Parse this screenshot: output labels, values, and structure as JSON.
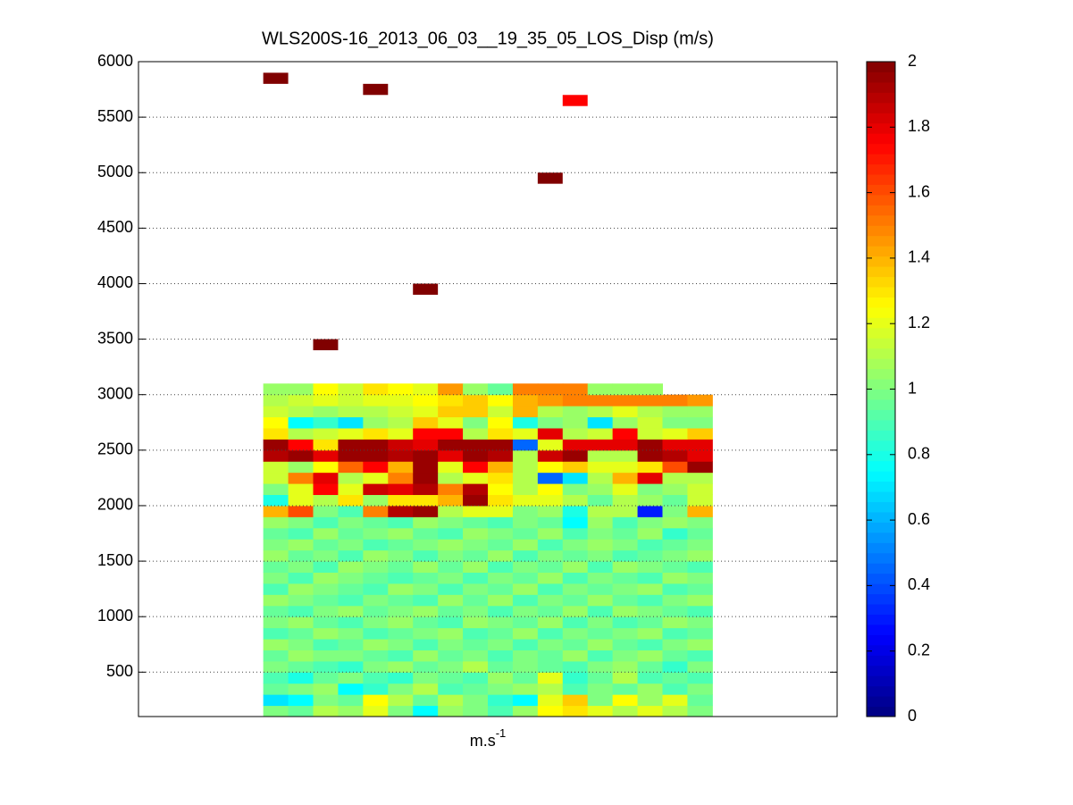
{
  "chart_data": {
    "type": "heatmap",
    "title": "WLS200S-16_2013_06_03__19_35_05_LOS_Disp (m/s)",
    "xlabel": {
      "text": "m.s",
      "superscript": "-1"
    },
    "xlim": [
      0,
      28
    ],
    "ylim": [
      100,
      6000
    ],
    "yticks": [
      500,
      1000,
      1500,
      2000,
      2500,
      3000,
      3500,
      4000,
      4500,
      5000,
      5500,
      6000
    ],
    "grid": true,
    "colormap": "jet",
    "clim": [
      0,
      2
    ],
    "cticks": [
      0,
      0.2,
      0.4,
      0.6,
      0.8,
      1,
      1.2,
      1.4,
      1.6,
      1.8,
      2
    ],
    "x_edges": [
      5,
      6,
      7,
      8,
      9,
      10,
      11,
      12,
      13,
      14,
      15,
      16,
      17,
      18,
      19,
      20,
      21,
      22,
      23
    ],
    "y_edges": [
      100,
      200,
      300,
      400,
      500,
      600,
      700,
      800,
      900,
      1000,
      1100,
      1200,
      1300,
      1400,
      1500,
      1600,
      1700,
      1800,
      1900,
      2000,
      2100,
      2200,
      2300,
      2400,
      2500,
      2600,
      2700,
      2800,
      2900,
      3000,
      3100
    ],
    "values": [
      [
        1.0,
        0.95,
        1.1,
        1.05,
        1.2,
        1.0,
        0.75,
        1.05,
        1.0,
        0.9,
        1.05,
        1.25,
        1.3,
        1.2,
        1.1,
        1.2,
        1.1,
        1.0
      ],
      [
        0.7,
        0.75,
        1.0,
        0.95,
        1.25,
        1.1,
        0.95,
        1.1,
        1.0,
        0.85,
        0.75,
        1.2,
        1.35,
        1.0,
        1.25,
        1.05,
        1.2,
        0.95
      ],
      [
        0.95,
        1.0,
        1.05,
        0.75,
        0.85,
        1.0,
        1.1,
        0.9,
        0.95,
        1.0,
        1.05,
        1.1,
        0.9,
        1.0,
        0.95,
        1.05,
        0.9,
        1.0
      ],
      [
        0.9,
        0.8,
        0.95,
        1.0,
        0.9,
        0.85,
        1.0,
        0.95,
        0.9,
        1.05,
        0.95,
        1.2,
        0.85,
        0.95,
        1.1,
        0.9,
        0.95,
        0.9
      ],
      [
        1.0,
        0.95,
        0.9,
        0.85,
        1.0,
        1.05,
        0.95,
        1.0,
        1.1,
        0.95,
        1.0,
        0.95,
        0.9,
        1.0,
        1.05,
        0.95,
        0.85,
        1.0
      ],
      [
        0.95,
        1.05,
        1.0,
        1.0,
        0.95,
        0.9,
        1.05,
        0.95,
        1.0,
        0.9,
        1.0,
        0.95,
        1.05,
        0.9,
        1.0,
        1.05,
        0.95,
        0.9
      ],
      [
        1.05,
        1.0,
        0.9,
        0.95,
        1.05,
        1.0,
        0.9,
        1.0,
        0.95,
        1.0,
        0.9,
        1.0,
        0.95,
        1.05,
        0.95,
        0.9,
        1.0,
        1.05
      ],
      [
        0.9,
        0.95,
        1.05,
        1.0,
        0.9,
        0.95,
        1.0,
        1.05,
        0.9,
        0.95,
        1.05,
        0.9,
        1.0,
        0.95,
        1.0,
        1.05,
        0.9,
        0.95
      ],
      [
        1.0,
        1.05,
        0.95,
        0.9,
        1.0,
        1.05,
        0.95,
        0.9,
        1.05,
        1.0,
        0.95,
        1.05,
        0.9,
        1.0,
        0.9,
        0.95,
        1.05,
        1.0
      ],
      [
        0.95,
        0.9,
        1.0,
        1.05,
        0.95,
        1.0,
        1.05,
        0.95,
        1.0,
        0.9,
        1.0,
        0.95,
        1.05,
        0.9,
        1.05,
        1.0,
        0.95,
        0.9
      ],
      [
        1.05,
        1.0,
        0.95,
        0.9,
        1.0,
        0.95,
        0.9,
        1.05,
        0.95,
        1.05,
        0.9,
        1.0,
        0.95,
        1.05,
        0.95,
        0.9,
        1.0,
        1.05
      ],
      [
        0.9,
        1.05,
        1.0,
        0.95,
        0.9,
        1.05,
        1.0,
        0.9,
        1.0,
        0.95,
        1.05,
        0.9,
        1.0,
        0.95,
        1.0,
        1.05,
        0.9,
        0.95
      ],
      [
        1.0,
        0.9,
        1.05,
        1.0,
        0.95,
        0.9,
        0.95,
        1.0,
        0.9,
        1.0,
        0.95,
        1.05,
        0.9,
        1.0,
        0.95,
        0.9,
        1.05,
        1.0
      ],
      [
        0.95,
        1.0,
        0.9,
        1.05,
        1.0,
        0.95,
        1.05,
        0.95,
        1.05,
        0.9,
        1.0,
        0.95,
        1.05,
        0.9,
        1.05,
        1.0,
        0.95,
        0.9
      ],
      [
        1.05,
        0.95,
        1.0,
        0.9,
        1.05,
        1.0,
        0.9,
        1.0,
        0.95,
        1.05,
        0.9,
        1.0,
        0.95,
        1.0,
        0.9,
        0.95,
        1.0,
        1.05
      ],
      [
        1.0,
        1.05,
        0.95,
        1.0,
        0.9,
        0.95,
        1.0,
        1.05,
        1.0,
        0.95,
        1.05,
        0.9,
        1.0,
        1.05,
        1.0,
        0.9,
        0.95,
        1.0
      ],
      [
        0.95,
        0.9,
        1.05,
        0.95,
        1.0,
        1.05,
        0.95,
        0.9,
        1.05,
        1.0,
        0.95,
        1.05,
        0.9,
        1.0,
        0.95,
        1.05,
        0.85,
        0.95
      ],
      [
        1.05,
        1.0,
        0.9,
        1.0,
        0.95,
        0.9,
        1.05,
        1.0,
        0.95,
        0.9,
        1.0,
        0.95,
        0.75,
        1.05,
        0.9,
        1.0,
        1.05,
        1.0
      ],
      [
        1.4,
        1.6,
        1.0,
        0.9,
        1.5,
        1.9,
        1.95,
        1.1,
        1.2,
        1.2,
        1.0,
        1.05,
        0.8,
        1.1,
        1.1,
        0.3,
        1.0,
        1.4
      ],
      [
        0.8,
        1.2,
        1.1,
        1.3,
        1.05,
        1.3,
        1.3,
        1.4,
        1.95,
        1.3,
        1.2,
        1.2,
        1.1,
        0.95,
        1.1,
        1.05,
        0.95,
        1.15
      ],
      [
        1.0,
        1.2,
        1.75,
        1.2,
        1.85,
        1.8,
        1.9,
        1.5,
        1.9,
        1.25,
        1.1,
        1.25,
        1.0,
        1.05,
        1.2,
        1.0,
        1.05,
        1.15
      ],
      [
        1.15,
        1.5,
        1.8,
        1.1,
        1.2,
        1.5,
        1.95,
        1.1,
        1.2,
        1.3,
        1.1,
        0.45,
        0.7,
        1.1,
        1.4,
        1.8,
        1.1,
        1.1
      ],
      [
        1.15,
        1.05,
        1.25,
        1.55,
        1.75,
        1.4,
        1.95,
        1.2,
        1.75,
        1.4,
        1.1,
        1.25,
        1.35,
        1.2,
        1.2,
        1.3,
        1.6,
        1.95
      ],
      [
        1.9,
        1.95,
        1.8,
        1.95,
        1.95,
        1.9,
        1.95,
        1.8,
        1.95,
        1.9,
        1.1,
        1.85,
        1.95,
        1.1,
        1.1,
        1.95,
        1.9,
        1.8
      ],
      [
        1.95,
        1.75,
        1.3,
        1.95,
        1.95,
        1.85,
        1.8,
        1.95,
        1.95,
        1.95,
        0.45,
        1.2,
        1.8,
        1.8,
        1.8,
        1.95,
        1.8,
        1.8
      ],
      [
        1.3,
        1.1,
        1.15,
        1.2,
        1.3,
        1.2,
        1.75,
        1.75,
        1.1,
        1.3,
        1.2,
        1.8,
        1.1,
        1.15,
        1.75,
        1.15,
        1.2,
        1.35
      ],
      [
        1.25,
        0.75,
        0.85,
        0.7,
        1.05,
        1.1,
        1.35,
        1.2,
        1.0,
        1.25,
        0.8,
        1.0,
        1.05,
        0.7,
        1.05,
        1.15,
        1.0,
        1.0
      ],
      [
        1.15,
        1.1,
        1.05,
        1.1,
        1.1,
        1.15,
        1.2,
        1.35,
        1.35,
        1.15,
        1.4,
        1.1,
        1.05,
        1.1,
        1.2,
        1.1,
        1.05,
        1.05
      ],
      [
        1.1,
        1.15,
        1.2,
        1.15,
        1.2,
        1.2,
        1.25,
        1.3,
        1.35,
        1.25,
        1.4,
        1.45,
        1.5,
        1.5,
        1.5,
        1.5,
        1.5,
        1.45
      ],
      [
        1.05,
        1.05,
        1.25,
        1.15,
        1.3,
        1.25,
        1.2,
        1.45,
        1.05,
        0.95,
        1.5,
        1.5,
        1.5,
        1.05,
        1.05,
        1.05,
        null,
        null
      ]
    ],
    "isolated_cells": [
      {
        "x": [
          5,
          6
        ],
        "y": [
          5800,
          5900
        ],
        "value": 2
      },
      {
        "x": [
          9,
          10
        ],
        "y": [
          5700,
          5800
        ],
        "value": 2
      },
      {
        "x": [
          17,
          18
        ],
        "y": [
          5600,
          5700
        ],
        "value": 1.75
      },
      {
        "x": [
          16,
          17
        ],
        "y": [
          4900,
          5000
        ],
        "value": 2
      },
      {
        "x": [
          11,
          12
        ],
        "y": [
          3900,
          4000
        ],
        "value": 2
      },
      {
        "x": [
          7,
          8
        ],
        "y": [
          3400,
          3500
        ],
        "value": 2
      }
    ]
  }
}
